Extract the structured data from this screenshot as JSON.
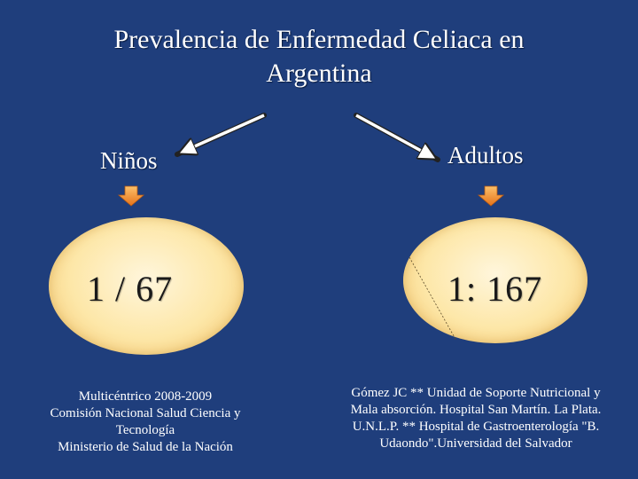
{
  "title": {
    "line1": "Prevalencia de Enfermedad Celiaca en",
    "line2": "Argentina"
  },
  "left": {
    "label": "Niños",
    "ratio": "1 / 67",
    "source_lines": [
      "Multicéntrico 2008-2009",
      "Comisión Nacional Salud Ciencia y",
      "Tecnología",
      "Ministerio de Salud de la Nación"
    ]
  },
  "right": {
    "label": "Adultos",
    "ratio": "1: 167",
    "source_lines": [
      "Gómez JC ** Unidad de Soporte Nutricional y",
      "Mala absorción. Hospital San Martín. La Plata.",
      "U.N.L.P. ** Hospital de Gastroenterología \"B.",
      "Udaondo\".Universidad del Salvador"
    ]
  },
  "colors": {
    "background": "#1f3e7c",
    "ellipse_fill": "#fde7a8",
    "down_arrow": "#f08a1c"
  }
}
